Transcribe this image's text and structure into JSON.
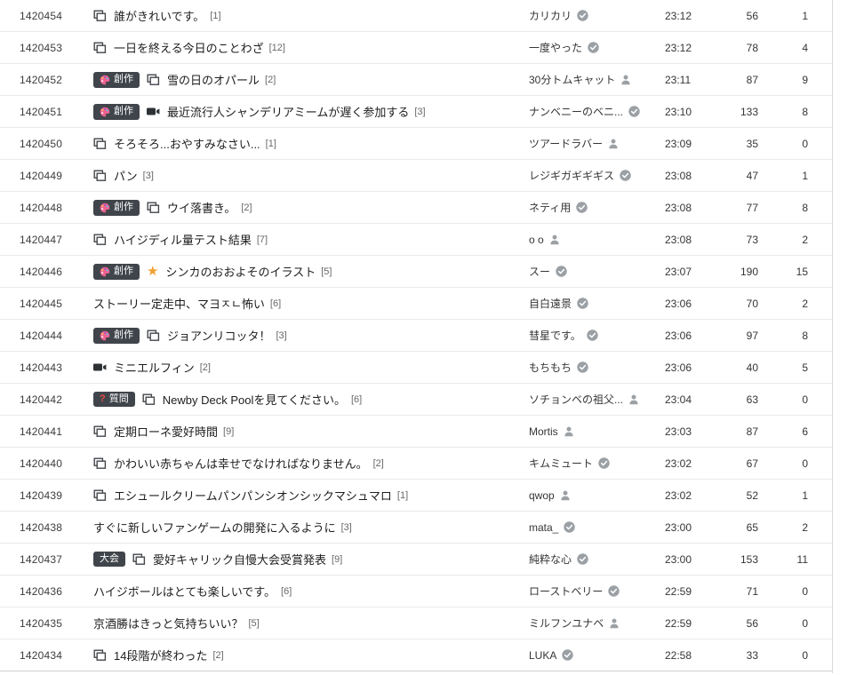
{
  "board": {
    "badges": {
      "creation": {
        "label": "創作",
        "icon": "palette"
      },
      "question": {
        "label": "質問",
        "icon": "question-mark"
      },
      "tournament": {
        "label": "大会",
        "icon": null
      }
    },
    "rows": [
      {
        "id": "1420454",
        "badge": null,
        "title_icon": "doc",
        "title": "誰がきれいです。",
        "comments": "1",
        "author": "カリカリ",
        "author_icon": "verified",
        "time": "23:12",
        "views": "56",
        "likes": "1"
      },
      {
        "id": "1420453",
        "badge": null,
        "title_icon": "doc",
        "title": "一日を終える今日のことわざ",
        "comments": "12",
        "author": "一度やった",
        "author_icon": "verified",
        "time": "23:12",
        "views": "78",
        "likes": "4"
      },
      {
        "id": "1420452",
        "badge": "creation",
        "title_icon": "doc",
        "title": "雪の日のオパール",
        "comments": "2",
        "author": "30分トムキャット",
        "author_icon": "person",
        "time": "23:11",
        "views": "87",
        "likes": "9"
      },
      {
        "id": "1420451",
        "badge": "creation",
        "title_icon": "video",
        "title": "最近流行人シャンデリアミームが遅く参加する",
        "comments": "3",
        "author": "ナンベニーのベニ...",
        "author_icon": "verified",
        "time": "23:10",
        "views": "133",
        "likes": "8"
      },
      {
        "id": "1420450",
        "badge": null,
        "title_icon": "doc",
        "title": "そろそろ...おやすみなさい...",
        "comments": "1",
        "author": "ツアードラバー",
        "author_icon": "person",
        "time": "23:09",
        "views": "35",
        "likes": "0"
      },
      {
        "id": "1420449",
        "badge": null,
        "title_icon": "doc",
        "title": "パン",
        "comments": "3",
        "author": "レジギガギギギス",
        "author_icon": "verified",
        "time": "23:08",
        "views": "47",
        "likes": "1"
      },
      {
        "id": "1420448",
        "badge": "creation",
        "title_icon": "doc",
        "title": "ウイ落書き。",
        "comments": "2",
        "author": "ネティ用",
        "author_icon": "verified",
        "time": "23:08",
        "views": "77",
        "likes": "8"
      },
      {
        "id": "1420447",
        "badge": null,
        "title_icon": "doc",
        "title": "ハイジディル量テスト結果",
        "comments": "7",
        "author": "o o",
        "author_icon": "person",
        "time": "23:08",
        "views": "73",
        "likes": "2"
      },
      {
        "id": "1420446",
        "badge": "creation",
        "title_icon": "star",
        "title": "シンカのおおよそのイラスト",
        "comments": "5",
        "author": "スー",
        "author_icon": "verified",
        "time": "23:07",
        "views": "190",
        "likes": "15"
      },
      {
        "id": "1420445",
        "badge": null,
        "title_icon": null,
        "title": "ストーリー定走中、マヨㅈㄴ怖い",
        "comments": "6",
        "author": "自白遠景",
        "author_icon": "verified",
        "time": "23:06",
        "views": "70",
        "likes": "2"
      },
      {
        "id": "1420444",
        "badge": "creation",
        "title_icon": "doc",
        "title": "ジョアンリコッタ！",
        "comments": "3",
        "author": "彗星です。",
        "author_icon": "verified",
        "time": "23:06",
        "views": "97",
        "likes": "8"
      },
      {
        "id": "1420443",
        "badge": null,
        "title_icon": "video",
        "title": "ミニエルフィン",
        "comments": "2",
        "author": "もちもち",
        "author_icon": "verified",
        "time": "23:06",
        "views": "40",
        "likes": "5"
      },
      {
        "id": "1420442",
        "badge": "question",
        "title_icon": "doc",
        "title": "Newby Deck Poolを見てください。",
        "comments": "6",
        "author": "ソチョンベの祖父...",
        "author_icon": "person",
        "time": "23:04",
        "views": "63",
        "likes": "0"
      },
      {
        "id": "1420441",
        "badge": null,
        "title_icon": "doc",
        "title": "定期ローネ愛好時間",
        "comments": "9",
        "author": "Mortis",
        "author_icon": "person",
        "time": "23:03",
        "views": "87",
        "likes": "6"
      },
      {
        "id": "1420440",
        "badge": null,
        "title_icon": "doc",
        "title": "かわいい赤ちゃんは幸せでなければなりません。",
        "comments": "2",
        "author": "キムミュート",
        "author_icon": "verified",
        "time": "23:02",
        "views": "67",
        "likes": "0"
      },
      {
        "id": "1420439",
        "badge": null,
        "title_icon": "doc",
        "title": "エシュールクリームパンパンシオンシックマシュマロ",
        "comments": "1",
        "author": "qwop",
        "author_icon": "person",
        "time": "23:02",
        "views": "52",
        "likes": "1"
      },
      {
        "id": "1420438",
        "badge": null,
        "title_icon": null,
        "title": "すぐに新しいファンゲームの開発に入るように",
        "comments": "3",
        "author": "mata_",
        "author_icon": "verified",
        "time": "23:00",
        "views": "65",
        "likes": "2"
      },
      {
        "id": "1420437",
        "badge": "tournament",
        "title_icon": "doc",
        "title": "愛好キャリック自慢大会受賞発表",
        "comments": "9",
        "author": "純粋な心",
        "author_icon": "verified",
        "time": "23:00",
        "views": "153",
        "likes": "11"
      },
      {
        "id": "1420436",
        "badge": null,
        "title_icon": null,
        "title": "ハイジボールはとても楽しいです。",
        "comments": "6",
        "author": "ローストベリー",
        "author_icon": "verified",
        "time": "22:59",
        "views": "71",
        "likes": "0"
      },
      {
        "id": "1420435",
        "badge": null,
        "title_icon": null,
        "title": "京酒勝はきっと気持ちいい？",
        "comments": "5",
        "author": "ミルフンユナベ",
        "author_icon": "person",
        "time": "22:59",
        "views": "56",
        "likes": "0"
      },
      {
        "id": "1420434",
        "badge": null,
        "title_icon": "doc",
        "title": "14段階が終わった",
        "comments": "2",
        "author": "LUKA",
        "author_icon": "verified",
        "time": "22:58",
        "views": "33",
        "likes": "0"
      }
    ]
  },
  "colors": {
    "badge_bg": "#40454b",
    "question_red": "#ef4b45",
    "star_orange": "#f1a032",
    "icon_gray": "#9ba0a5",
    "glyph_dark": "#44474c"
  }
}
